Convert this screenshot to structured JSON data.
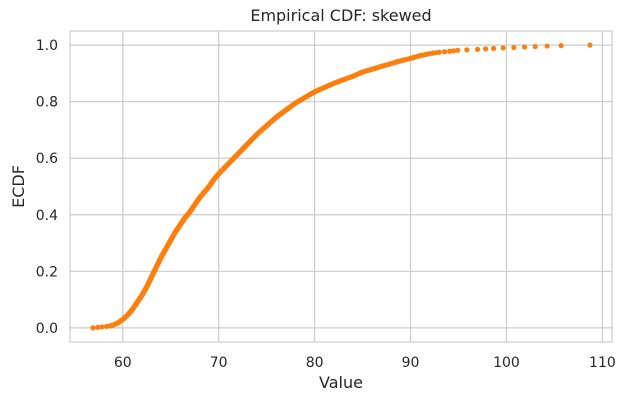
{
  "chart_data": {
    "type": "scatter",
    "title": "Empirical CDF: skewed",
    "xlabel": "Value",
    "ylabel": "ECDF",
    "xlim": [
      54.5,
      111.0
    ],
    "ylim": [
      -0.05,
      1.05
    ],
    "xticks": [
      60,
      70,
      80,
      90,
      100,
      110
    ],
    "yticks": [
      0.0,
      0.2,
      0.4,
      0.6,
      0.8,
      1.0
    ],
    "xtick_labels": [
      "60",
      "70",
      "80",
      "90",
      "100",
      "110"
    ],
    "ytick_labels": [
      "0.0",
      "0.2",
      "0.4",
      "0.6",
      "0.8",
      "1.0"
    ],
    "grid": true,
    "point_color": "#ff7f0e",
    "n_points": 600,
    "series": [
      {
        "values_note": "ECDF points follow the curve below",
        "x": [
          56.9,
          57.5,
          58.0,
          58.6,
          59.0,
          59.5,
          60.0,
          60.5,
          61.0,
          61.5,
          62.0,
          62.5,
          63.0,
          63.5,
          64.0,
          64.5,
          65.0,
          65.5,
          66.0,
          66.5,
          67.0,
          67.5,
          68.0,
          68.5,
          69.0,
          69.5,
          70.0,
          71.0,
          72.0,
          73.0,
          74.0,
          75.0,
          76.0,
          77.0,
          78.0,
          79.0,
          80.0,
          81.0,
          82.0,
          83.0,
          84.0,
          85.0,
          86.0,
          87.0,
          88.0,
          89.0,
          90.0,
          91.0,
          92.0,
          93.0,
          94.0,
          95.0,
          97.0,
          99.0,
          101.0,
          103.0,
          104.5,
          106.3,
          108.7
        ],
        "y": [
          0.0,
          0.002,
          0.004,
          0.006,
          0.01,
          0.018,
          0.03,
          0.045,
          0.065,
          0.09,
          0.115,
          0.145,
          0.18,
          0.215,
          0.25,
          0.28,
          0.31,
          0.34,
          0.365,
          0.39,
          0.41,
          0.435,
          0.46,
          0.48,
          0.5,
          0.525,
          0.545,
          0.58,
          0.615,
          0.65,
          0.685,
          0.715,
          0.745,
          0.77,
          0.795,
          0.815,
          0.835,
          0.85,
          0.865,
          0.878,
          0.89,
          0.905,
          0.915,
          0.925,
          0.935,
          0.945,
          0.953,
          0.963,
          0.97,
          0.975,
          0.978,
          0.982,
          0.985,
          0.989,
          0.992,
          0.995,
          0.997,
          0.999,
          1.0
        ]
      }
    ]
  }
}
